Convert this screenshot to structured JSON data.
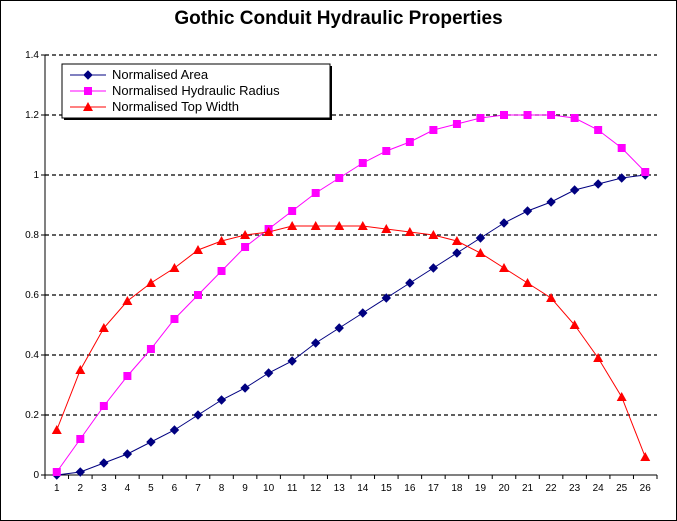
{
  "chart_data": {
    "type": "line",
    "title": "Gothic Conduit Hydraulic Properties",
    "xlabel": "",
    "ylabel": "",
    "categories": [
      "1",
      "2",
      "3",
      "4",
      "5",
      "6",
      "7",
      "8",
      "9",
      "10",
      "11",
      "12",
      "13",
      "14",
      "15",
      "16",
      "17",
      "18",
      "19",
      "20",
      "21",
      "22",
      "23",
      "24",
      "25",
      "26"
    ],
    "ylim": [
      0,
      1.4
    ],
    "yticks": [
      "0",
      "0.2",
      "0.4",
      "0.6",
      "0.8",
      "1",
      "1.2",
      "1.4"
    ],
    "grid": "horizontal dashed",
    "legend_position": "top-left",
    "series": [
      {
        "name": "Normalised Area",
        "color": "#000080",
        "marker": "diamond",
        "values": [
          0.0,
          0.01,
          0.04,
          0.07,
          0.11,
          0.15,
          0.2,
          0.25,
          0.29,
          0.34,
          0.38,
          0.44,
          0.49,
          0.54,
          0.59,
          0.64,
          0.69,
          0.74,
          0.79,
          0.84,
          0.88,
          0.91,
          0.95,
          0.97,
          0.99,
          1.0
        ]
      },
      {
        "name": "Normalised Hydraulic Radius",
        "color": "#ff00ff",
        "marker": "square",
        "values": [
          0.01,
          0.12,
          0.23,
          0.33,
          0.42,
          0.52,
          0.6,
          0.68,
          0.76,
          0.82,
          0.88,
          0.94,
          0.99,
          1.04,
          1.08,
          1.11,
          1.15,
          1.17,
          1.19,
          1.2,
          1.2,
          1.2,
          1.19,
          1.15,
          1.09,
          1.01
        ]
      },
      {
        "name": "Normalised Top Width",
        "color": "#ff0000",
        "marker": "triangle",
        "values": [
          0.15,
          0.35,
          0.49,
          0.58,
          0.64,
          0.69,
          0.75,
          0.78,
          0.8,
          0.81,
          0.83,
          0.83,
          0.83,
          0.83,
          0.82,
          0.81,
          0.8,
          0.78,
          0.74,
          0.69,
          0.64,
          0.59,
          0.5,
          0.39,
          0.26,
          0.06
        ]
      }
    ]
  }
}
